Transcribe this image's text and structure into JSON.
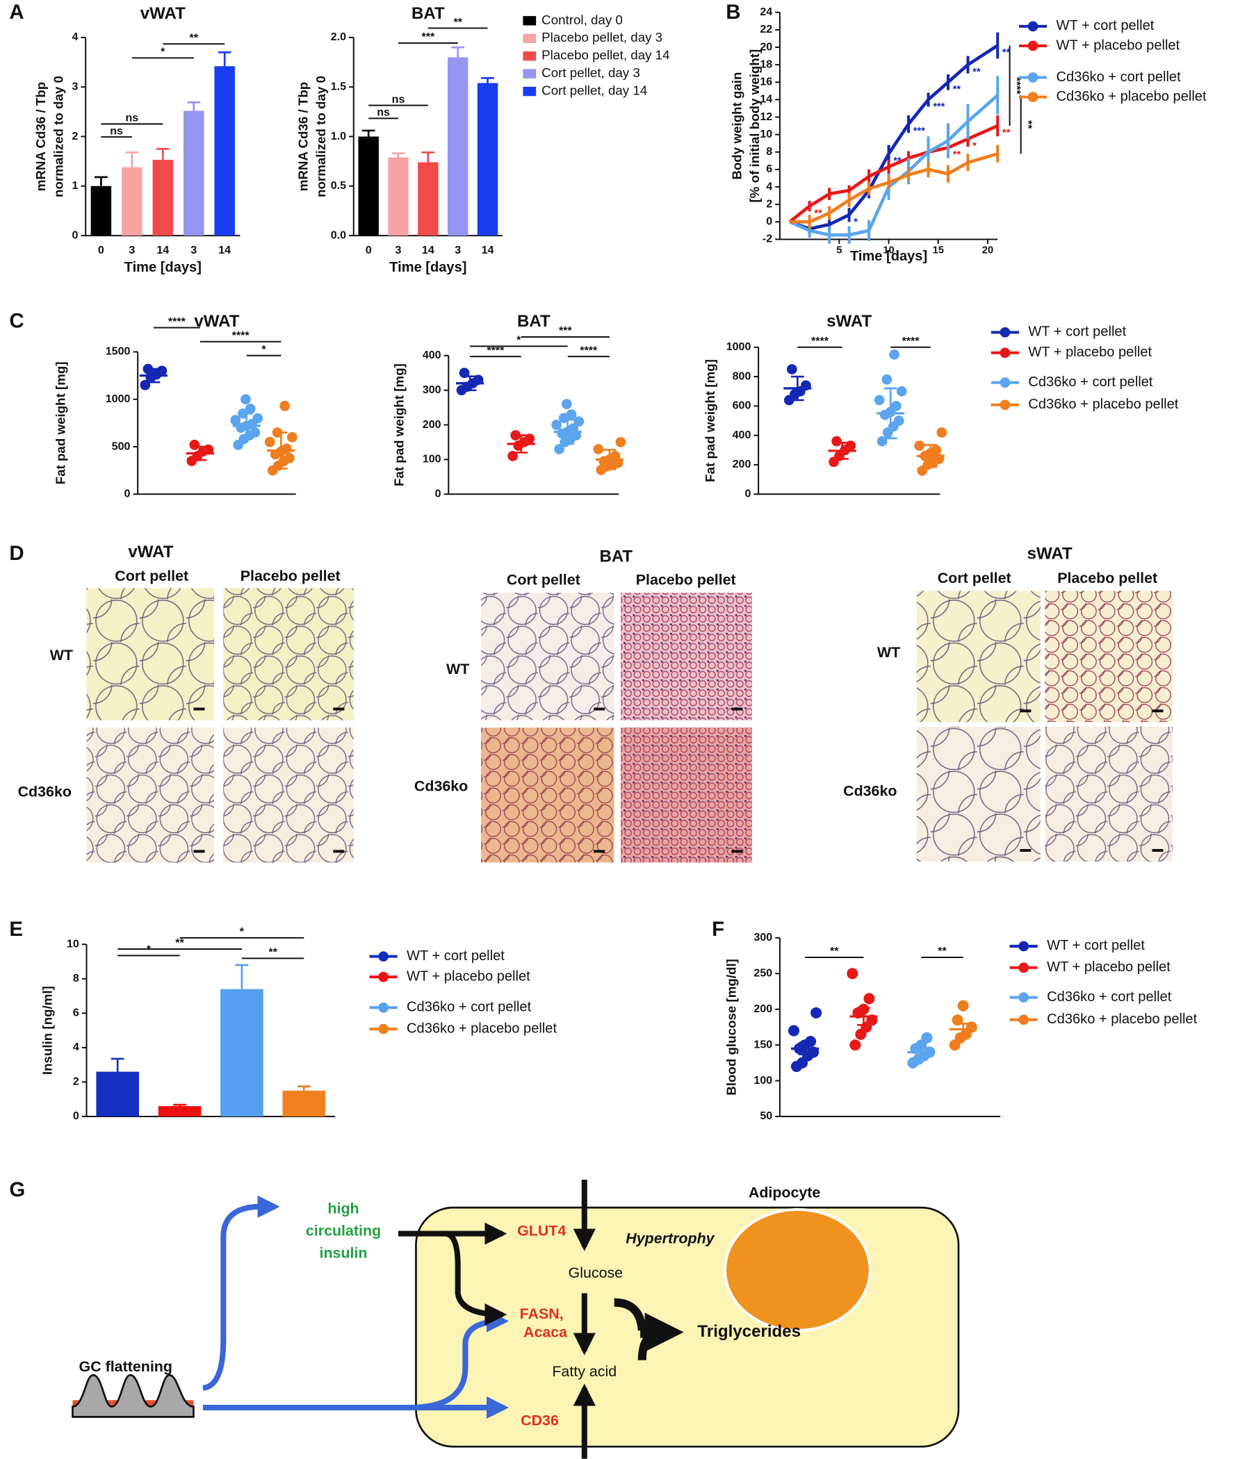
{
  "panels": [
    "A",
    "B",
    "C",
    "D",
    "E",
    "F",
    "G"
  ],
  "chart_data": [
    {
      "type": "bar",
      "title": "vWAT",
      "ylabel": [
        "mRNA Cd36 / Tbp",
        "normalized to day 0"
      ],
      "xlabel": "Time [days]",
      "categories": [
        "0",
        "3",
        "14",
        "3",
        "14"
      ],
      "values": [
        1.0,
        1.38,
        1.53,
        2.52,
        3.42
      ],
      "errors": [
        0.18,
        0.3,
        0.22,
        0.17,
        0.28
      ],
      "colors": [
        "#000000",
        "#f6a3a3",
        "#f24a4a",
        "#9696f2",
        "#1a3cf0"
      ],
      "ylim": [
        0,
        4
      ],
      "yticks": [
        0,
        1,
        2,
        3,
        4
      ],
      "brackets": [
        {
          "label": "ns",
          "from": 0,
          "to": 1
        },
        {
          "label": "ns",
          "from": 0,
          "to": 2
        },
        {
          "label": "*",
          "from": 1,
          "to": 3
        },
        {
          "label": "**",
          "from": 2,
          "to": 4
        }
      ]
    },
    {
      "type": "bar",
      "title": "BAT",
      "ylabel": [
        "mRNA Cd36 / Tbp",
        "normalized to day 0"
      ],
      "xlabel": "Time [days]",
      "categories": [
        "0",
        "3",
        "14",
        "3",
        "14"
      ],
      "values": [
        1.0,
        0.79,
        0.74,
        1.8,
        1.54
      ],
      "errors": [
        0.06,
        0.04,
        0.1,
        0.1,
        0.05
      ],
      "colors": [
        "#000000",
        "#f6a3a3",
        "#f24a4a",
        "#9696f2",
        "#1a3cf0"
      ],
      "legend": [
        "Control, day 0",
        "Placebo pellet, day 3",
        "Placebo pellet, day 14",
        "Cort pellet, day 3",
        "Cort pellet, day 14"
      ],
      "ylim": [
        0,
        2
      ],
      "yticks": [
        {
          "value": 0,
          "label": "0.0"
        },
        {
          "value": 0.5,
          "label": "0.5"
        },
        {
          "value": 1,
          "label": "1.0"
        },
        {
          "value": 1.5,
          "label": "1.5"
        },
        {
          "value": 2,
          "label": "2.0"
        }
      ],
      "brackets": [
        {
          "label": "ns",
          "from": 0,
          "to": 1
        },
        {
          "label": "ns",
          "from": 0,
          "to": 2
        },
        {
          "label": "***",
          "from": 1,
          "to": 3
        },
        {
          "label": "**",
          "from": 2,
          "to": 4
        }
      ]
    },
    {
      "type": "line",
      "ylabel": [
        "Body weight gain",
        "[% of initial body weight]"
      ],
      "xlabel": "Time [days]",
      "x": [
        0,
        2,
        4,
        6,
        8,
        10,
        12,
        14,
        16,
        18,
        21
      ],
      "xlim": [
        -1,
        21
      ],
      "xticks": [
        5,
        10,
        15,
        20
      ],
      "ylim": [
        -2,
        24
      ],
      "yticks": [
        -2,
        0,
        2,
        4,
        6,
        8,
        10,
        12,
        14,
        16,
        18,
        20,
        22,
        24
      ],
      "series": [
        {
          "name": "WT + cort pellet",
          "color": "#1428b4",
          "values": [
            0,
            -0.8,
            -0.3,
            0.8,
            3.6,
            7.8,
            11.2,
            14,
            16,
            18,
            20.2
          ],
          "errors": [
            0,
            0.6,
            0.6,
            0.8,
            0.9,
            1,
            1,
            0.8,
            0.9,
            1,
            1.5
          ],
          "point_labels": [
            null,
            null,
            null,
            "*",
            null,
            "**",
            "***",
            "***",
            "**",
            "**",
            "**"
          ]
        },
        {
          "name": "WT + placebo pellet",
          "color": "#e81818",
          "values": [
            0,
            1.8,
            3.2,
            3.6,
            5.2,
            6.3,
            7.3,
            8,
            8.5,
            9.5,
            11
          ],
          "errors": [
            0,
            0.6,
            0.7,
            0.6,
            0.8,
            0.8,
            0.8,
            0.8,
            0.8,
            0.9,
            1.2
          ],
          "point_labels": [
            null,
            "**",
            null,
            null,
            null,
            null,
            null,
            null,
            "**",
            "*",
            "**"
          ]
        },
        {
          "name": "Cd36ko + cort pellet",
          "color": "#5aa5ee",
          "values": [
            0,
            -1,
            -1.5,
            -1.5,
            -1,
            4,
            5.8,
            8,
            9.3,
            11.5,
            14.5
          ],
          "errors": [
            0,
            0.8,
            1,
            1,
            1.2,
            1.5,
            1.5,
            1.8,
            2,
            2,
            2.2
          ]
        },
        {
          "name": "Cd36ko + placebo pellet",
          "color": "#f07d1e",
          "values": [
            0,
            0,
            1,
            2.5,
            3.8,
            4.5,
            5.4,
            6,
            5.5,
            6.8,
            7.8
          ],
          "errors": [
            0,
            0.8,
            0.8,
            0.8,
            0.8,
            0.8,
            0.8,
            0.9,
            1,
            1,
            1
          ]
        }
      ],
      "brackets": [
        {
          "label": "****",
          "from": 0,
          "to": 1
        },
        {
          "label": "**",
          "from": 2,
          "to": 3
        }
      ]
    },
    {
      "type": "dotplot",
      "title": "vWAT",
      "ylabel": "Fat pad weight [mg]",
      "ylim": [
        0,
        1500
      ],
      "yticks": [
        0,
        500,
        1000,
        1500
      ],
      "series": [
        {
          "color": "#1428b4",
          "values": [
            1150,
            1230,
            1260,
            1300,
            1320
          ],
          "mean": 1250,
          "error": 70
        },
        {
          "color": "#e81818",
          "values": [
            350,
            400,
            450,
            470,
            520
          ],
          "mean": 430,
          "error": 70
        },
        {
          "color": "#5aa5ee",
          "values": [
            520,
            580,
            620,
            650,
            700,
            720,
            740,
            780,
            800,
            850,
            900,
            1000
          ],
          "mean": 720,
          "error": 130
        },
        {
          "color": "#f07d1e",
          "values": [
            250,
            300,
            350,
            380,
            420,
            450,
            480,
            550,
            600,
            650,
            930
          ],
          "mean": 460,
          "error": 190
        }
      ],
      "brackets": [
        {
          "label": "****",
          "from": 0,
          "to": 1
        },
        {
          "label": "****",
          "from": 1,
          "to": 3
        },
        {
          "label": "*",
          "from": 2,
          "to": 3
        }
      ]
    },
    {
      "type": "dotplot",
      "title": "BAT",
      "ylabel": "Fat pad weight [mg]",
      "ylim": [
        0,
        400
      ],
      "yticks": [
        0,
        100,
        200,
        300,
        400
      ],
      "series": [
        {
          "color": "#1428b4",
          "values": [
            300,
            310,
            320,
            330,
            350
          ],
          "mean": 320,
          "error": 20
        },
        {
          "color": "#e81818",
          "values": [
            110,
            140,
            150,
            160,
            170
          ],
          "mean": 145,
          "error": 25
        },
        {
          "color": "#5aa5ee",
          "values": [
            130,
            150,
            160,
            170,
            175,
            180,
            190,
            200,
            210,
            220,
            230,
            260
          ],
          "mean": 180,
          "error": 35
        },
        {
          "color": "#f07d1e",
          "values": [
            70,
            80,
            85,
            90,
            95,
            100,
            110,
            130,
            150
          ],
          "mean": 100,
          "error": 28
        }
      ],
      "brackets": [
        {
          "label": "****",
          "from": 0,
          "to": 1
        },
        {
          "label": "*",
          "from": 0,
          "to": 2
        },
        {
          "label": "***",
          "from": 1,
          "to": 3
        },
        {
          "label": "****",
          "from": 2,
          "to": 3
        }
      ]
    },
    {
      "type": "dotplot",
      "title": "sWAT",
      "ylabel": "Fat pad weight [mg]",
      "ylim": [
        0,
        1000
      ],
      "yticks": [
        0,
        200,
        400,
        600,
        800,
        1000
      ],
      "series": [
        {
          "name": "WT + cort pellet",
          "color": "#1428b4",
          "values": [
            640,
            680,
            700,
            740,
            850
          ],
          "mean": 720,
          "error": 80
        },
        {
          "name": "WT + placebo pellet",
          "color": "#e81818",
          "values": [
            220,
            260,
            300,
            330,
            360
          ],
          "mean": 295,
          "error": 55
        },
        {
          "name": "Cd36ko + cort pellet",
          "color": "#5aa5ee",
          "values": [
            360,
            420,
            460,
            500,
            540,
            560,
            600,
            640,
            700,
            780,
            950
          ],
          "mean": 550,
          "error": 170
        },
        {
          "name": "Cd36ko + placebo pellet",
          "color": "#f07d1e",
          "values": [
            160,
            200,
            220,
            240,
            260,
            280,
            300,
            330,
            420
          ],
          "mean": 260,
          "error": 75
        }
      ],
      "brackets": [
        {
          "label": "****",
          "from": 0,
          "to": 1
        },
        {
          "label": "****",
          "from": 2,
          "to": 3
        }
      ]
    },
    {
      "type": "bar",
      "ylabel": "Insulin [ng/ml]",
      "values": [
        2.6,
        0.6,
        7.4,
        1.5
      ],
      "errors": [
        0.75,
        0.08,
        1.4,
        0.25
      ],
      "colors": [
        "#1430c0",
        "#f01010",
        "#55a0f0",
        "#f08020"
      ],
      "legend": [
        "WT + cort pellet",
        "WT + placebo pellet",
        "Cd36ko + cort pellet",
        "Cd36ko + placebo pellet"
      ],
      "ylim": [
        0,
        10
      ],
      "yticks": [
        0,
        2,
        4,
        6,
        8,
        10
      ],
      "brackets": [
        {
          "label": "*",
          "from": 0,
          "to": 1
        },
        {
          "label": "**",
          "from": 0,
          "to": 2
        },
        {
          "label": "*",
          "from": 1,
          "to": 3
        },
        {
          "label": "**",
          "from": 2,
          "to": 3
        }
      ]
    },
    {
      "type": "dotplot",
      "ylabel": "Blood glucose [mg/dl]",
      "ylim": [
        50,
        300
      ],
      "yticks": [
        50,
        100,
        150,
        200,
        250,
        300
      ],
      "series": [
        {
          "name": "WT + cort pellet",
          "color": "#1428b4",
          "values": [
            120,
            125,
            135,
            140,
            145,
            150,
            155,
            170,
            195
          ],
          "mean": 145,
          "error": 8
        },
        {
          "name": "WT + placebo pellet",
          "color": "#e81818",
          "values": [
            150,
            165,
            175,
            185,
            195,
            200,
            215,
            250
          ],
          "mean": 190,
          "error": 12
        },
        {
          "name": "Cd36ko + cort pellet",
          "color": "#5aa5ee",
          "values": [
            125,
            130,
            135,
            140,
            145,
            150,
            160
          ],
          "mean": 140,
          "error": 6
        },
        {
          "name": "Cd36ko + placebo pellet",
          "color": "#f07d1e",
          "values": [
            150,
            160,
            165,
            175,
            185,
            205
          ],
          "mean": 172,
          "error": 8
        }
      ],
      "brackets": [
        {
          "label": "**",
          "from": 0,
          "to": 1
        },
        {
          "label": "**",
          "from": 2,
          "to": 3
        }
      ]
    }
  ],
  "histology": [
    {
      "title": "vWAT",
      "columns": [
        "Cort pellet",
        "Placebo pellet"
      ],
      "rows": [
        "WT",
        "Cd36ko"
      ]
    },
    {
      "title": "BAT",
      "columns": [
        "Cort pellet",
        "Placebo pellet"
      ],
      "rows": [
        "WT",
        "Cd36ko"
      ]
    },
    {
      "title": "sWAT",
      "columns": [
        "Cort pellet",
        "Placebo pellet"
      ],
      "rows": [
        "WT",
        "Cd36ko"
      ]
    }
  ],
  "diagram": {
    "cell": "Adipocyte",
    "insulin": [
      "high",
      "circulating",
      "insulin"
    ],
    "glut4": "GLUT4",
    "hypertrophy": "Hypertrophy",
    "glucose": "Glucose",
    "fasn": [
      "FASN,",
      "Acaca"
    ],
    "triglycerides": "Triglycerides",
    "fatty_acid": "Fatty acid",
    "cd36": "CD36",
    "stimulus": "GC flattening"
  }
}
